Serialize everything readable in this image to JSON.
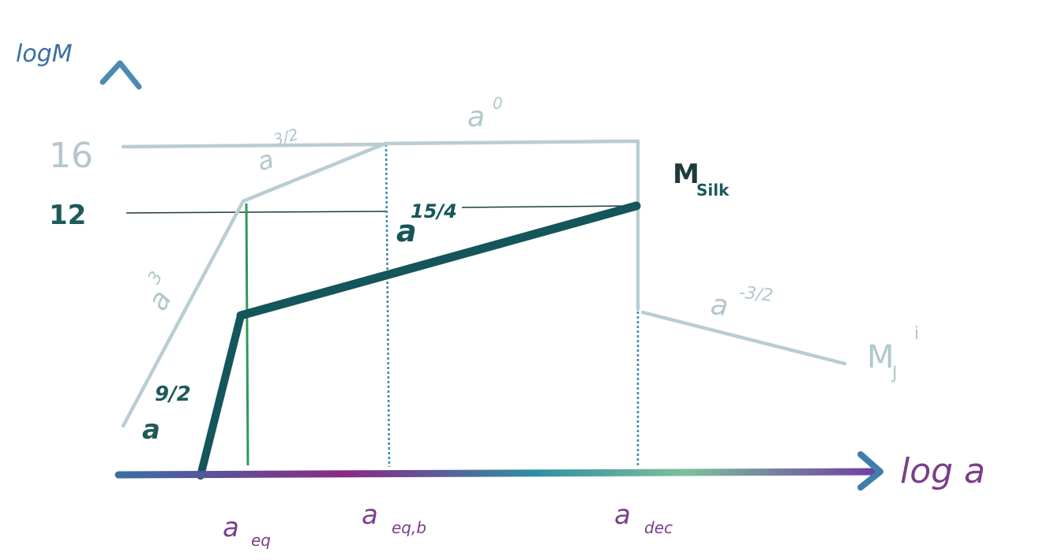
{
  "axes": {
    "y_label": "logM",
    "x_label": "log a",
    "y_ticks": [
      "16",
      "12"
    ],
    "x_ticks": [
      {
        "main": "a",
        "sub": "eq"
      },
      {
        "main": "a",
        "sub": "eq,b"
      },
      {
        "main": "a",
        "sub": "dec"
      }
    ]
  },
  "curves": {
    "jeans": {
      "name": {
        "main": "M",
        "sub": "J",
        "sup": "i"
      },
      "slopes": [
        {
          "base": "a",
          "exp": "3"
        },
        {
          "base": "a",
          "exp": "3/2"
        },
        {
          "base": "a",
          "exp": "0"
        },
        {
          "base": "a",
          "exp": "-3/2"
        }
      ]
    },
    "silk": {
      "name": {
        "main": "M",
        "sub": "Silk"
      },
      "slopes": [
        {
          "base": "a",
          "exp": "9/2"
        },
        {
          "base": "a",
          "exp": "15/4"
        }
      ]
    }
  },
  "colors": {
    "jeans_curve": "#b9cdd3",
    "silk_curve": "#14565a",
    "axis": "#3b6fa0",
    "axis_x_accent": "#8a2a86",
    "guide_green": "#2e9a55",
    "guide_blue": "#3b86b0",
    "tick_text_light": "#b3c7cc",
    "tick_text_dark": "#1d5a5a",
    "label_purple": "#7b3e8c"
  }
}
